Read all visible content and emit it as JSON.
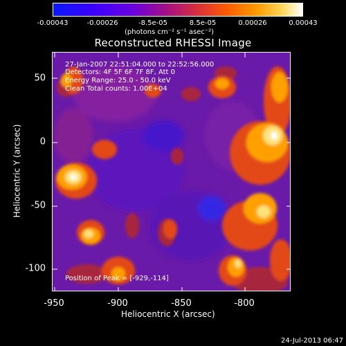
{
  "colorbar": {
    "ticks": [
      "-0.00043",
      "-0.00026",
      "-8.5e-05",
      "8.5e-05",
      "0.00026",
      "0.00043"
    ],
    "units": "(photons cm⁻² s⁻¹ asec⁻²)"
  },
  "title": "Reconstructed RHESSI Image",
  "info": {
    "time": "27-Jan-2007 22:51:04.000 to 22:52:56.000",
    "detectors": "Detectors: 4F 5F 6F 7F 8F, Att 0",
    "energy": "Energy Range: 25.0 - 50.0 keV",
    "clean": "Clean    Total counts: 1.00E+04"
  },
  "peak": "Position of Peak = [-929,-114]",
  "axes": {
    "xlabel": "Heliocentric X (arcsec)",
    "ylabel": "Heliocentric Y (arcsec)",
    "xticks": [
      "-950",
      "-900",
      "-850",
      "-800"
    ],
    "yticks": [
      "50",
      "0",
      "-50",
      "-100"
    ]
  },
  "footer": "24-Jul-2013 06:47"
}
